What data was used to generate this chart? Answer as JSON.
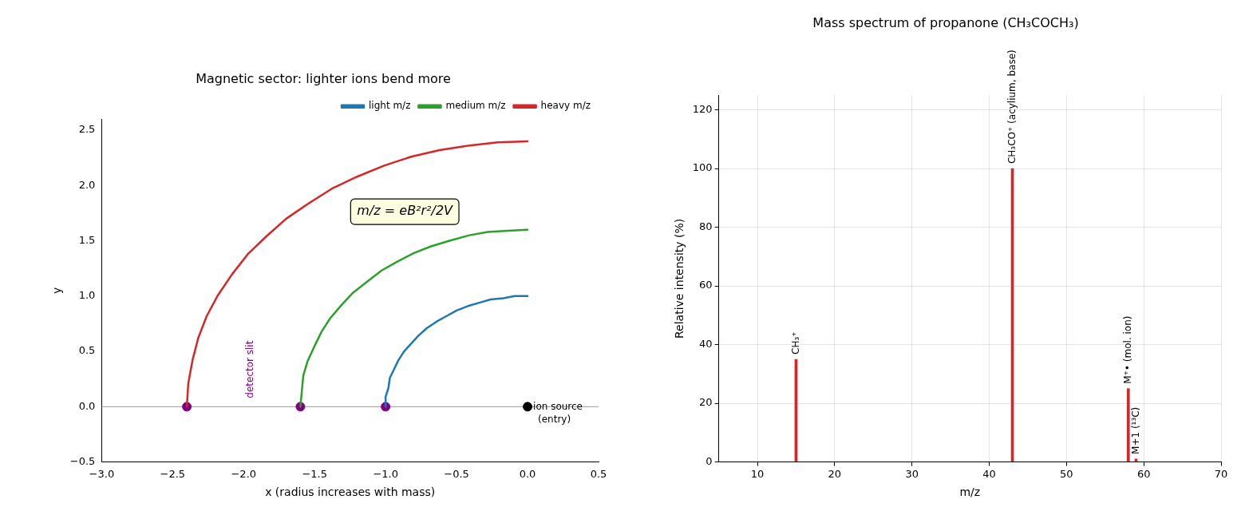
{
  "chart_data": [
    {
      "type": "line",
      "title": "Magnetic sector: lighter ions bend more",
      "xlabel": "x (radius increases with mass)",
      "ylabel": "y",
      "series": [
        {
          "name": "light m/z",
          "color": "#1f77b4",
          "marker": "none",
          "x": [
            0,
            -0.09,
            -0.17,
            -0.26,
            -0.34,
            -0.42,
            -0.5,
            -0.57,
            -0.64,
            -0.71,
            -0.77,
            -0.82,
            -0.87,
            -0.91,
            -0.94,
            -0.97,
            -0.98,
            -1,
            -1
          ],
          "values": [
            1,
            1,
            0.98,
            0.97,
            0.94,
            0.91,
            0.87,
            0.82,
            0.77,
            0.71,
            0.64,
            0.57,
            0.5,
            0.42,
            0.34,
            0.26,
            0.17,
            0.09,
            0
          ]
        },
        {
          "name": "medium m/z",
          "color": "#2ca02c",
          "marker": "none",
          "x": [
            0,
            -0.14,
            -0.28,
            -0.41,
            -0.55,
            -0.68,
            -0.8,
            -0.92,
            -1.03,
            -1.13,
            -1.23,
            -1.31,
            -1.39,
            -1.45,
            -1.5,
            -1.55,
            -1.58,
            -1.59,
            -1.6
          ],
          "values": [
            1.6,
            1.59,
            1.58,
            1.55,
            1.5,
            1.45,
            1.39,
            1.31,
            1.23,
            1.13,
            1.03,
            0.92,
            0.8,
            0.68,
            0.55,
            0.41,
            0.28,
            0.14,
            0
          ]
        },
        {
          "name": "heavy m/z",
          "color": "#d62728",
          "marker": "none",
          "x": [
            0,
            -0.21,
            -0.42,
            -0.62,
            -0.82,
            -1.01,
            -1.2,
            -1.38,
            -1.54,
            -1.7,
            -1.84,
            -1.97,
            -2.08,
            -2.18,
            -2.26,
            -2.32,
            -2.36,
            -2.39,
            -2.4
          ],
          "values": [
            2.4,
            2.39,
            2.36,
            2.32,
            2.26,
            2.18,
            2.08,
            1.97,
            1.84,
            1.7,
            1.54,
            1.38,
            1.2,
            1.01,
            0.82,
            0.62,
            0.42,
            0.21,
            0
          ]
        },
        {
          "type": "scatter",
          "color": "#800080",
          "marker": "circle",
          "x": [
            -2.4,
            -1.6,
            -1
          ],
          "values": [
            0,
            0,
            0
          ]
        },
        {
          "type": "scatter",
          "color": "#000000",
          "marker": "circle",
          "x": [
            0
          ],
          "values": [
            0
          ]
        }
      ],
      "xlim": [
        -3,
        0.5
      ],
      "xticks": [
        {
          "value": -3,
          "label": "−3.0"
        },
        {
          "value": -2.5,
          "label": "−2.5"
        },
        {
          "value": -2,
          "label": "−2.0"
        },
        {
          "value": -1.5,
          "label": "−1.5"
        },
        {
          "value": -1,
          "label": "−1.0"
        },
        {
          "value": -0.5,
          "label": "−0.5"
        },
        {
          "value": 0,
          "label": "0.0"
        },
        {
          "value": 0.5,
          "label": "0.5"
        }
      ],
      "ylim": [
        -0.5,
        2.6
      ],
      "yticks": [
        {
          "value": -0.5,
          "label": "−0.5"
        },
        {
          "value": 0,
          "label": "0.0"
        },
        {
          "value": 0.5,
          "label": "0.5"
        },
        {
          "value": 1,
          "label": "1.0"
        },
        {
          "value": 1.5,
          "label": "1.5"
        },
        {
          "value": 2,
          "label": "2.0"
        },
        {
          "value": 2.5,
          "label": "2.5"
        }
      ],
      "ref_lines": [
        {
          "axis": "y",
          "value": 0,
          "color": "#808080"
        }
      ],
      "annotations": [
        "m/z = eB²r²/2V",
        "detector slit",
        {
          "text": "ion source\n(entry)",
          "x": 0,
          "y": 0
        }
      ],
      "legend": "top right",
      "grid": false
    },
    {
      "type": "bar",
      "title": "Mass spectrum of propanone (CH₃COCH₃)",
      "xlabel": "m/z",
      "ylabel": "Relative intensity (%)",
      "x": [
        15,
        43,
        58,
        59
      ],
      "values": [
        35,
        100,
        25,
        1
      ],
      "color": "#d62728",
      "xlim": [
        5,
        70
      ],
      "xticks": [
        10,
        20,
        30,
        40,
        50,
        60,
        70
      ],
      "ylim": [
        0,
        125
      ],
      "yticks": [
        0,
        20,
        40,
        60,
        80,
        100,
        120
      ],
      "annotations": [
        {
          "text": "CH₃⁺",
          "x": 15,
          "y": 35
        },
        {
          "text": "CH₃CO⁺ (acylium, base)",
          "x": 43,
          "y": 100
        },
        {
          "text": "M⁺• (mol. ion)",
          "x": 58,
          "y": 25
        },
        {
          "text": "M+1 (¹³C)",
          "x": 59,
          "y": 1
        }
      ],
      "grid": true
    }
  ]
}
